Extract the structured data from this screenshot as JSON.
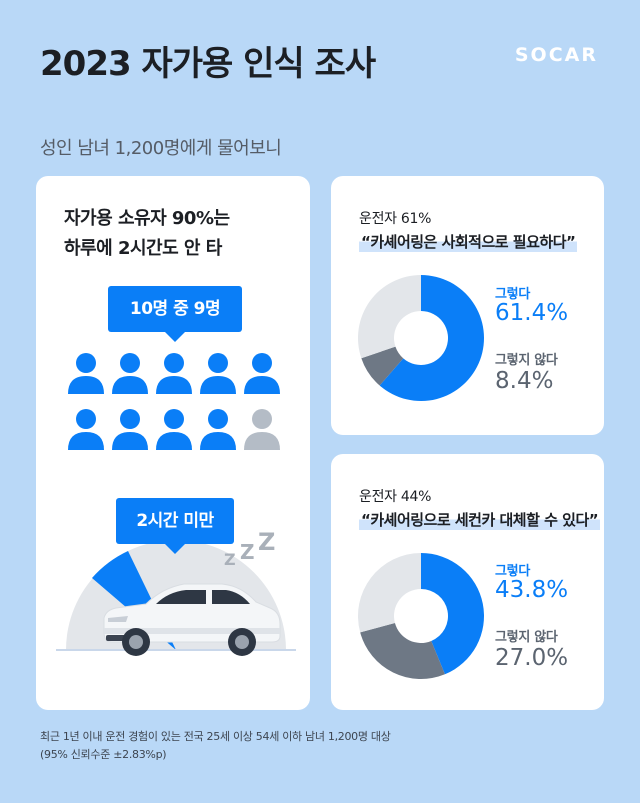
{
  "header": {
    "title": "2023 자가용 인식 조사",
    "brand": "SOCAR",
    "subtitle": "성인 남녀 1,200명에게 물어보니"
  },
  "left_card": {
    "headline_line1": "자가용 소유자 90%는",
    "headline_line2": "하루에 2시간도 안 타",
    "callout_people": "10명 중 9명",
    "people_total": 10,
    "people_highlighted": 9,
    "callout_time": "2시간 미만",
    "zzz": "Z"
  },
  "survey": [
    {
      "respondents": "운전자 61%",
      "question": "“카셰어링은 사회적으로 필요하다”",
      "yes_label": "그렇다",
      "yes_value": "61.4%",
      "no_label": "그렇지 않다",
      "no_value": "8.4%",
      "yes_pct": 61.4,
      "no_pct": 8.4
    },
    {
      "respondents": "운전자 44%",
      "question": "“카셰어링으로 세컨카 대체할 수 있다”",
      "yes_label": "그렇다",
      "yes_value": "43.8%",
      "no_label": "그렇지 않다",
      "no_value": "27.0%",
      "yes_pct": 43.8,
      "no_pct": 27.0
    }
  ],
  "colors": {
    "background": "#b9d8f7",
    "accent_blue": "#0a7ef7",
    "neutral_dark": "#6e7885",
    "neutral_light": "#e3e6ea"
  },
  "footnote": {
    "line1": "최근 1년 이내 운전 경험이 있는 전국 25세 이상 54세 이하 남녀 1,200명 대상",
    "line2": "(95% 신뢰수준 ±2.83%p)"
  }
}
